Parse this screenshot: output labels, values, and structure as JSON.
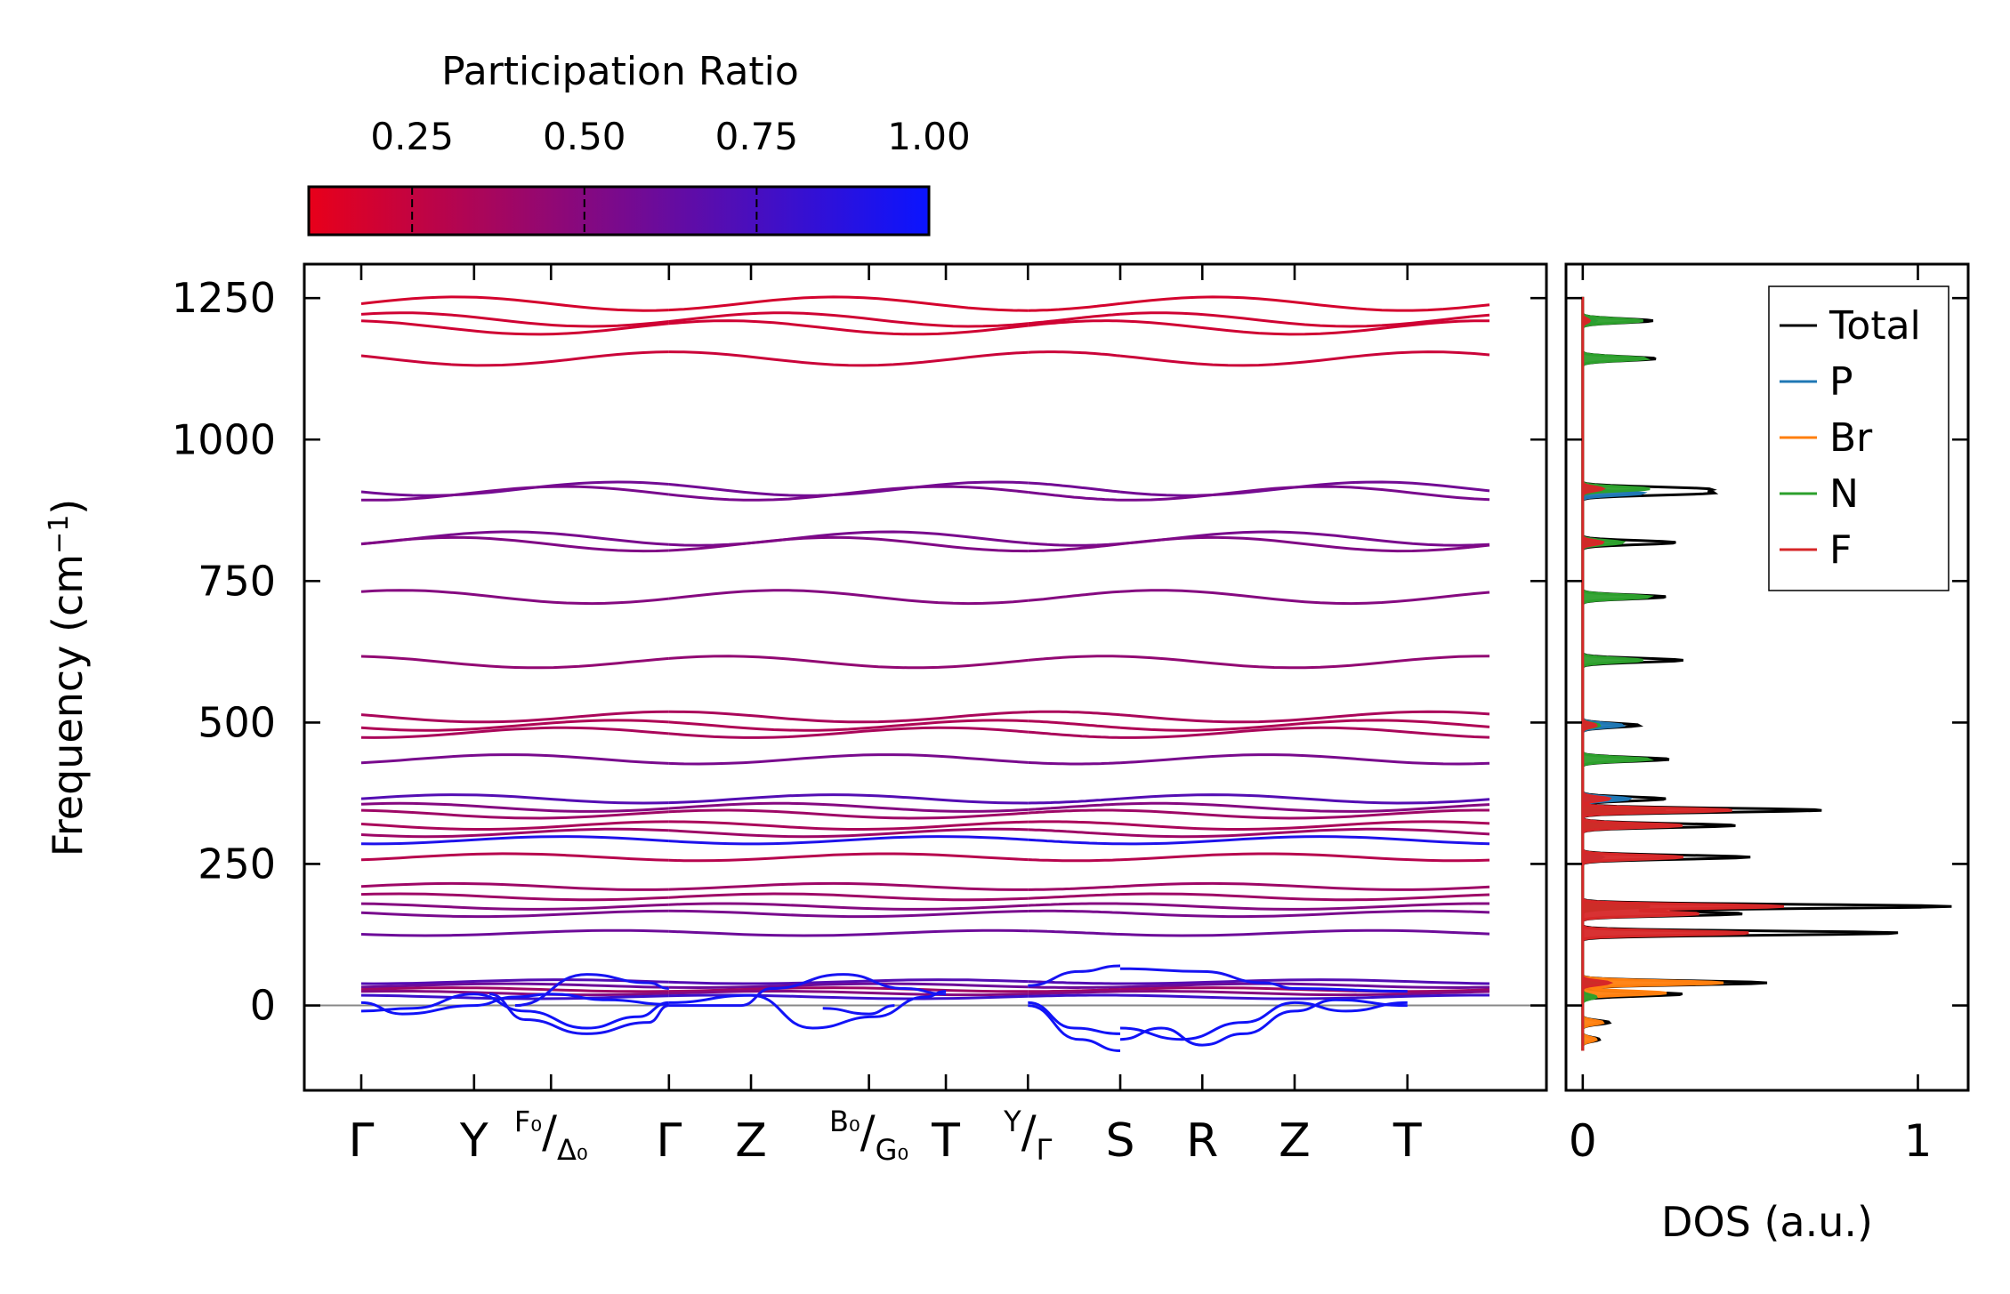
{
  "chart_data": [
    {
      "type": "line",
      "subtype": "phonon-band-structure",
      "ylabel": "Frequency (cm",
      "ylabel_sup": "−1",
      "ylabel_tail": ")",
      "ylim": [
        -150,
        1310
      ],
      "yticks": [
        0,
        250,
        500,
        750,
        1000,
        1250
      ],
      "yticklabels": [
        "0",
        "250",
        "500",
        "750",
        "1000",
        "1250"
      ],
      "xlim": [
        0,
        11.0
      ],
      "path_segment_breaks": [
        3.0,
        6.5,
        7.4
      ],
      "kpoints": [
        {
          "pos": 0.0,
          "label": "Γ"
        },
        {
          "pos": 1.1,
          "label": "Y"
        },
        {
          "pos": 1.85,
          "label": "F₀/Δ₀",
          "top": "F₀",
          "bottom": "Δ₀"
        },
        {
          "pos": 3.0,
          "label": "Γ"
        },
        {
          "pos": 3.8,
          "label": "Z"
        },
        {
          "pos": 4.95,
          "label": "B₀/G₀",
          "top": "B₀",
          "bottom": "G₀"
        },
        {
          "pos": 5.7,
          "label": "T"
        },
        {
          "pos": 6.5,
          "label": "Y/Γ",
          "top": "Y",
          "bottom": "Γ"
        },
        {
          "pos": 7.4,
          "label": "S"
        },
        {
          "pos": 8.2,
          "label": "R"
        },
        {
          "pos": 9.1,
          "label": "Z"
        },
        {
          "pos": 10.2,
          "label": "T"
        }
      ],
      "zero_line": 0,
      "colorbar": {
        "title": "Participation Ratio",
        "range": [
          0.1,
          1.0
        ],
        "ticks": [
          0.25,
          0.5,
          0.75,
          1.0
        ],
        "ticklabels": [
          "0.25",
          "0.50",
          "0.75",
          "1.00"
        ],
        "colors": [
          "#e8001a",
          "#0a14ff"
        ]
      },
      "bands": [
        {
          "f": 1240,
          "pr": 0.18
        },
        {
          "f": 1212,
          "pr": 0.2
        },
        {
          "f": 1198,
          "pr": 0.2
        },
        {
          "f": 1143,
          "pr": 0.22
        },
        {
          "f": 913,
          "pr": 0.58
        },
        {
          "f": 905,
          "pr": 0.55
        },
        {
          "f": 825,
          "pr": 0.55
        },
        {
          "f": 815,
          "pr": 0.52
        },
        {
          "f": 722,
          "pr": 0.5
        },
        {
          "f": 607,
          "pr": 0.45
        },
        {
          "f": 510,
          "pr": 0.35
        },
        {
          "f": 495,
          "pr": 0.33
        },
        {
          "f": 482,
          "pr": 0.35
        },
        {
          "f": 435,
          "pr": 0.55
        },
        {
          "f": 365,
          "pr": 0.7
        },
        {
          "f": 350,
          "pr": 0.5
        },
        {
          "f": 338,
          "pr": 0.4
        },
        {
          "f": 318,
          "pr": 0.35
        },
        {
          "f": 305,
          "pr": 0.4
        },
        {
          "f": 292,
          "pr": 0.92
        },
        {
          "f": 262,
          "pr": 0.3
        },
        {
          "f": 210,
          "pr": 0.4
        },
        {
          "f": 192,
          "pr": 0.4
        },
        {
          "f": 175,
          "pr": 0.5
        },
        {
          "f": 162,
          "pr": 0.55
        },
        {
          "f": 128,
          "pr": 0.6
        },
        {
          "f": 42,
          "pr": 0.7
        },
        {
          "f": 35,
          "pr": 0.6
        },
        {
          "f": 28,
          "pr": 0.4
        },
        {
          "f": 22,
          "pr": 0.5
        },
        {
          "f": 15,
          "pr": 0.8
        }
      ],
      "acoustic_bands": [
        {
          "pr": 0.97,
          "points": [
            [
              0,
              5
            ],
            [
              0.4,
              -15
            ],
            [
              1.1,
              0
            ],
            [
              1.5,
              15
            ],
            [
              1.85,
              20
            ],
            [
              2.4,
              10
            ],
            [
              3.0,
              2
            ]
          ]
        },
        {
          "pr": 0.97,
          "points": [
            [
              0,
              -10
            ],
            [
              0.5,
              -5
            ],
            [
              1.1,
              20
            ],
            [
              1.6,
              -10
            ],
            [
              2.2,
              -40
            ],
            [
              2.7,
              -20
            ],
            [
              3.0,
              5
            ]
          ]
        },
        {
          "pr": 0.95,
          "points": [
            [
              1.25,
              20
            ],
            [
              1.6,
              -25
            ],
            [
              2.2,
              -50
            ],
            [
              2.8,
              -30
            ],
            [
              3.0,
              0
            ]
          ]
        },
        {
          "pr": 0.95,
          "points": [
            [
              1.5,
              0
            ],
            [
              2.2,
              55
            ],
            [
              2.8,
              40
            ],
            [
              3.0,
              30
            ]
          ]
        },
        {
          "pr": 0.97,
          "points": [
            [
              3.0,
              5
            ],
            [
              3.8,
              18
            ],
            [
              4.4,
              -40
            ],
            [
              5.0,
              -20
            ],
            [
              5.5,
              15
            ],
            [
              5.7,
              25
            ]
          ]
        },
        {
          "pr": 0.95,
          "points": [
            [
              3.0,
              0
            ],
            [
              3.7,
              0
            ],
            [
              4.0,
              30
            ],
            [
              4.7,
              55
            ],
            [
              5.3,
              30
            ],
            [
              5.7,
              20
            ]
          ]
        },
        {
          "pr": 0.96,
          "points": [
            [
              4.5,
              -5
            ],
            [
              4.95,
              -15
            ],
            [
              5.2,
              0
            ]
          ]
        },
        {
          "pr": 0.97,
          "points": [
            [
              6.5,
              0
            ],
            [
              7.0,
              -60
            ],
            [
              7.4,
              -80
            ]
          ]
        },
        {
          "pr": 0.97,
          "points": [
            [
              6.5,
              5
            ],
            [
              6.95,
              -40
            ],
            [
              7.4,
              -50
            ]
          ]
        },
        {
          "pr": 0.95,
          "points": [
            [
              6.5,
              35
            ],
            [
              7.0,
              60
            ],
            [
              7.4,
              70
            ]
          ]
        },
        {
          "pr": 0.97,
          "points": [
            [
              7.4,
              -60
            ],
            [
              7.8,
              -40
            ],
            [
              8.2,
              -70
            ],
            [
              8.6,
              -50
            ],
            [
              9.1,
              -10
            ],
            [
              9.5,
              10
            ],
            [
              10.2,
              0
            ]
          ]
        },
        {
          "pr": 0.97,
          "points": [
            [
              7.4,
              -40
            ],
            [
              8.0,
              -60
            ],
            [
              8.6,
              -30
            ],
            [
              9.1,
              5
            ],
            [
              9.6,
              -10
            ],
            [
              10.2,
              5
            ]
          ]
        },
        {
          "pr": 0.95,
          "points": [
            [
              7.4,
              65
            ],
            [
              8.2,
              60
            ],
            [
              8.8,
              40
            ],
            [
              9.1,
              30
            ],
            [
              10.2,
              25
            ]
          ]
        }
      ]
    },
    {
      "type": "area",
      "subtype": "density-of-states",
      "xlabel": "DOS (a.u.)",
      "xlim": [
        -0.05,
        1.15
      ],
      "xticks": [
        0,
        1
      ],
      "xticklabels": [
        "0",
        "1"
      ],
      "ylim": [
        -150,
        1310
      ],
      "legend_position": "top-right",
      "series": [
        {
          "name": "Total",
          "color": "#000000",
          "peaks": [
            [
              1210,
              0.21
            ],
            [
              1143,
              0.22
            ],
            [
              913,
              0.35
            ],
            [
              905,
              0.36
            ],
            [
              818,
              0.28
            ],
            [
              722,
              0.25
            ],
            [
              610,
              0.3
            ],
            [
              495,
              0.17
            ],
            [
              435,
              0.26
            ],
            [
              365,
              0.25
            ],
            [
              345,
              0.72
            ],
            [
              318,
              0.46
            ],
            [
              262,
              0.5
            ],
            [
              175,
              1.1
            ],
            [
              162,
              0.48
            ],
            [
              128,
              0.95
            ],
            [
              40,
              0.55
            ],
            [
              20,
              0.3
            ],
            [
              -30,
              0.08
            ],
            [
              -60,
              0.05
            ]
          ]
        },
        {
          "name": "P",
          "color": "#1f77b4",
          "peaks": [
            [
              1210,
              0.04
            ],
            [
              905,
              0.18
            ],
            [
              818,
              0.05
            ],
            [
              495,
              0.12
            ],
            [
              365,
              0.14
            ],
            [
              345,
              0.2
            ],
            [
              318,
              0.1
            ],
            [
              262,
              0.06
            ],
            [
              175,
              0.1
            ],
            [
              40,
              0.05
            ]
          ]
        },
        {
          "name": "Br",
          "color": "#ff7f0e",
          "peaks": [
            [
              905,
              0.02
            ],
            [
              365,
              0.06
            ],
            [
              262,
              0.05
            ],
            [
              175,
              0.05
            ],
            [
              40,
              0.42
            ],
            [
              22,
              0.25
            ],
            [
              -30,
              0.06
            ],
            [
              -60,
              0.04
            ]
          ]
        },
        {
          "name": "N",
          "color": "#2ca02c",
          "peaks": [
            [
              1210,
              0.18
            ],
            [
              1143,
              0.19
            ],
            [
              913,
              0.2
            ],
            [
              818,
              0.12
            ],
            [
              722,
              0.2
            ],
            [
              610,
              0.18
            ],
            [
              495,
              0.05
            ],
            [
              435,
              0.2
            ],
            [
              345,
              0.25
            ],
            [
              318,
              0.22
            ],
            [
              175,
              0.2
            ],
            [
              40,
              0.05
            ],
            [
              15,
              0.04
            ]
          ]
        },
        {
          "name": "F",
          "color": "#d62728",
          "peaks": [
            [
              1210,
              0.02
            ],
            [
              913,
              0.06
            ],
            [
              818,
              0.06
            ],
            [
              495,
              0.04
            ],
            [
              365,
              0.08
            ],
            [
              345,
              0.45
            ],
            [
              318,
              0.3
            ],
            [
              262,
              0.3
            ],
            [
              175,
              0.6
            ],
            [
              162,
              0.35
            ],
            [
              128,
              0.5
            ],
            [
              40,
              0.08
            ]
          ]
        }
      ]
    }
  ]
}
